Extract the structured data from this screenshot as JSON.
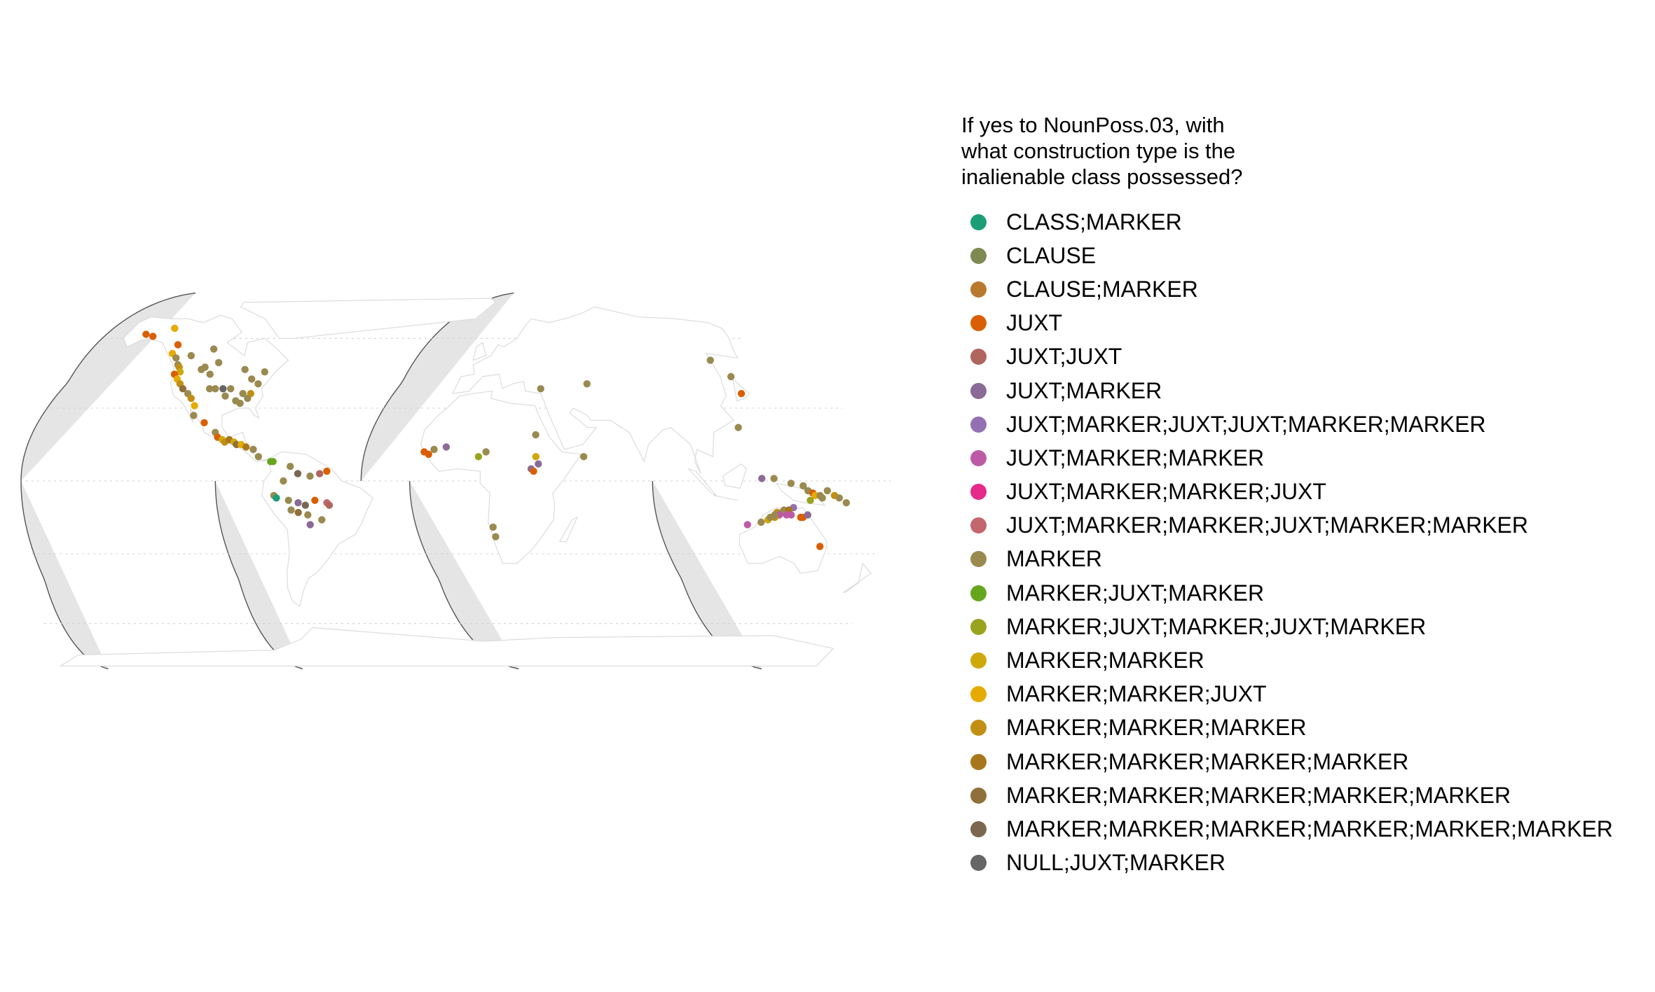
{
  "legend": {
    "title_lines": [
      "If yes to NounPoss.03, with",
      "what construction type is the",
      "inalienable class possessed?"
    ],
    "items": [
      {
        "label": "CLASS;MARKER",
        "color": "#1b9e77"
      },
      {
        "label": "CLAUSE",
        "color": "#7d8a52"
      },
      {
        "label": "CLAUSE;MARKER",
        "color": "#b8792c"
      },
      {
        "label": "JUXT",
        "color": "#d95f02"
      },
      {
        "label": "JUXT;JUXT",
        "color": "#b0655e"
      },
      {
        "label": "JUXT;MARKER",
        "color": "#8c6a98"
      },
      {
        "label": "JUXT;MARKER;JUXT;JUXT;MARKER;MARKER",
        "color": "#9470b3"
      },
      {
        "label": "JUXT;MARKER;MARKER",
        "color": "#bd5aa6"
      },
      {
        "label": "JUXT;MARKER;MARKER;JUXT",
        "color": "#e7298a"
      },
      {
        "label": "JUXT;MARKER;MARKER;JUXT;MARKER;MARKER",
        "color": "#c4666e"
      },
      {
        "label": "MARKER",
        "color": "#9a8a50"
      },
      {
        "label": "MARKER;JUXT;MARKER",
        "color": "#66a61e"
      },
      {
        "label": "MARKER;JUXT;MARKER;JUXT;MARKER",
        "color": "#99a31e"
      },
      {
        "label": "MARKER;MARKER",
        "color": "#cfa80c"
      },
      {
        "label": "MARKER;MARKER;JUXT",
        "color": "#e6ab02"
      },
      {
        "label": "MARKER;MARKER;MARKER",
        "color": "#c28f14"
      },
      {
        "label": "MARKER;MARKER;MARKER;MARKER",
        "color": "#a8771c"
      },
      {
        "label": "MARKER;MARKER;MARKER;MARKER;MARKER",
        "color": "#90703a"
      },
      {
        "label": "MARKER;MARKER;MARKER;MARKER;MARKER;MARKER",
        "color": "#7b6650"
      },
      {
        "label": "NULL;JUXT;MARKER",
        "color": "#666666"
      }
    ]
  },
  "map": {
    "projection": "interrupted Goode homolosine",
    "land_color": "#ffffff",
    "ocean_color": "#e5e5e5",
    "graticule": "dotted",
    "points": [
      {
        "lon": -151,
        "lat": 62,
        "c": "JUXT"
      },
      {
        "lon": -145,
        "lat": 61,
        "c": "JUXT"
      },
      {
        "lon": -132,
        "lat": 65,
        "c": "MARKER;MARKER;JUXT"
      },
      {
        "lon": -125,
        "lat": 57,
        "c": "JUXT"
      },
      {
        "lon": -127,
        "lat": 53,
        "c": "MARKER;MARKER;JUXT"
      },
      {
        "lon": -124,
        "lat": 51,
        "c": "MARKER"
      },
      {
        "lon": -122,
        "lat": 48,
        "c": "MARKER"
      },
      {
        "lon": -121,
        "lat": 47,
        "c": "MARKER;MARKER;MARKER"
      },
      {
        "lon": -120,
        "lat": 45,
        "c": "MARKER;MARKER"
      },
      {
        "lon": -123,
        "lat": 44,
        "c": "JUXT"
      },
      {
        "lon": -121,
        "lat": 42,
        "c": "MARKER;MARKER;JUXT"
      },
      {
        "lon": -119,
        "lat": 40,
        "c": "MARKER;MARKER;MARKER"
      },
      {
        "lon": -117,
        "lat": 38,
        "c": "MARKER;MARKER;MARKER;MARKER;MARKER"
      },
      {
        "lon": -114,
        "lat": 36,
        "c": "MARKER"
      },
      {
        "lon": -112,
        "lat": 34,
        "c": "MARKER;MARKER;MARKER"
      },
      {
        "lon": -110,
        "lat": 31,
        "c": "MARKER;MARKER;JUXT"
      },
      {
        "lon": -115,
        "lat": 52,
        "c": "MARKER"
      },
      {
        "lon": -108,
        "lat": 46,
        "c": "MARKER"
      },
      {
        "lon": -106,
        "lat": 47,
        "c": "MARKER"
      },
      {
        "lon": -103,
        "lat": 44,
        "c": "MARKER"
      },
      {
        "lon": -98,
        "lat": 49,
        "c": "MARKER"
      },
      {
        "lon": -103,
        "lat": 38,
        "c": "MARKER"
      },
      {
        "lon": -100,
        "lat": 38,
        "c": "MARKER"
      },
      {
        "lon": -96,
        "lat": 38,
        "c": "NULL;JUXT;MARKER"
      },
      {
        "lon": -92,
        "lat": 38,
        "c": "MARKER"
      },
      {
        "lon": -95,
        "lat": 35,
        "c": "MARKER"
      },
      {
        "lon": -90,
        "lat": 33,
        "c": "MARKER"
      },
      {
        "lon": -88,
        "lat": 32,
        "c": "MARKER"
      },
      {
        "lon": -86,
        "lat": 36,
        "c": "MARKER"
      },
      {
        "lon": -83,
        "lat": 46,
        "c": "MARKER"
      },
      {
        "lon": -80,
        "lat": 42,
        "c": "MARKER"
      },
      {
        "lon": -77,
        "lat": 40,
        "c": "MARKER"
      },
      {
        "lon": -72,
        "lat": 45,
        "c": "MARKER"
      },
      {
        "lon": -82,
        "lat": 36,
        "c": "MARKER;MARKER;MARKER"
      },
      {
        "lon": -84,
        "lat": 34,
        "c": "MARKER"
      },
      {
        "lon": -101,
        "lat": 55,
        "c": "MARKER"
      },
      {
        "lon": -110,
        "lat": 27,
        "c": "MARKER"
      },
      {
        "lon": -105,
        "lat": 24,
        "c": "JUXT"
      },
      {
        "lon": -100,
        "lat": 20,
        "c": "MARKER"
      },
      {
        "lon": -99,
        "lat": 18,
        "c": "JUXT"
      },
      {
        "lon": -97,
        "lat": 17,
        "c": "MARKER;MARKER"
      },
      {
        "lon": -96,
        "lat": 16,
        "c": "MARKER;MARKER;MARKER"
      },
      {
        "lon": -94,
        "lat": 17,
        "c": "MARKER;MARKER;MARKER;MARKER"
      },
      {
        "lon": -92,
        "lat": 16,
        "c": "MARKER;MARKER"
      },
      {
        "lon": -91,
        "lat": 15,
        "c": "MARKER;MARKER;MARKER;MARKER;MARKER"
      },
      {
        "lon": -89,
        "lat": 15,
        "c": "MARKER;MARKER;JUXT"
      },
      {
        "lon": -87,
        "lat": 14,
        "c": "MARKER;MARKER;MARKER;MARKER"
      },
      {
        "lon": -84,
        "lat": 13,
        "c": "MARKER"
      },
      {
        "lon": -82,
        "lat": 10,
        "c": "MARKER"
      },
      {
        "lon": -77,
        "lat": 8,
        "c": "MARKER;JUXT;MARKER"
      },
      {
        "lon": -76,
        "lat": 8,
        "c": "MARKER;JUXT;MARKER"
      },
      {
        "lon": -69,
        "lat": 6,
        "c": "MARKER"
      },
      {
        "lon": -66,
        "lat": 3,
        "c": "MARKER;MARKER;MARKER;MARKER;MARKER;MARKER"
      },
      {
        "lon": -61,
        "lat": 2,
        "c": "MARKER"
      },
      {
        "lon": -57,
        "lat": 3,
        "c": "JUXT;JUXT"
      },
      {
        "lon": -54,
        "lat": 4,
        "c": "JUXT"
      },
      {
        "lon": -72,
        "lat": 0,
        "c": "MARKER"
      },
      {
        "lon": -76,
        "lat": -6,
        "c": "MARKER"
      },
      {
        "lon": -75,
        "lat": -7,
        "c": "CLASS;MARKER"
      },
      {
        "lon": -70,
        "lat": -8,
        "c": "MARKER"
      },
      {
        "lon": -66,
        "lat": -9,
        "c": "JUXT;MARKER"
      },
      {
        "lon": -63,
        "lat": -10,
        "c": "MARKER;MARKER;MARKER;MARKER;MARKER;MARKER"
      },
      {
        "lon": -59,
        "lat": -8,
        "c": "JUXT"
      },
      {
        "lon": -54,
        "lat": -9,
        "c": "JUXT;MARKER;MARKER;JUXT;MARKER;MARKER"
      },
      {
        "lon": -53,
        "lat": -10,
        "c": "JUXT;JUXT"
      },
      {
        "lon": -69,
        "lat": -12,
        "c": "MARKER"
      },
      {
        "lon": -66,
        "lat": -13,
        "c": "MARKER;MARKER;MARKER;MARKER;MARKER"
      },
      {
        "lon": -62,
        "lat": -14,
        "c": "MARKER"
      },
      {
        "lon": -61,
        "lat": -18,
        "c": "JUXT;MARKER"
      },
      {
        "lon": -56,
        "lat": -16,
        "c": "MARKER"
      },
      {
        "lon": -15,
        "lat": 12,
        "c": "JUXT"
      },
      {
        "lon": -13,
        "lat": 11,
        "c": "JUXT"
      },
      {
        "lon": -11,
        "lat": 13,
        "c": "MARKER"
      },
      {
        "lon": -6,
        "lat": 14,
        "c": "JUXT;MARKER"
      },
      {
        "lon": 8,
        "lat": 10,
        "c": "MARKER;JUXT;MARKER;JUXT;MARKER"
      },
      {
        "lon": 11,
        "lat": 12,
        "c": "MARKER"
      },
      {
        "lon": 32,
        "lat": 19,
        "c": "MARKER"
      },
      {
        "lon": 32,
        "lat": 10,
        "c": "MARKER;MARKER"
      },
      {
        "lon": 30,
        "lat": 5,
        "c": "JUXT;MARKER"
      },
      {
        "lon": 31,
        "lat": 4,
        "c": "JUXT"
      },
      {
        "lon": 33,
        "lat": 7,
        "c": "JUXT;MARKER"
      },
      {
        "lon": 14,
        "lat": -19,
        "c": "MARKER"
      },
      {
        "lon": 15,
        "lat": -23,
        "c": "MARKER"
      },
      {
        "lon": 35,
        "lat": 38,
        "c": "MARKER"
      },
      {
        "lon": 60,
        "lat": 40,
        "c": "MARKER"
      },
      {
        "lon": 52,
        "lat": 10,
        "c": "MARKER"
      },
      {
        "lon": 138,
        "lat": 50,
        "c": "MARKER"
      },
      {
        "lon": 141,
        "lat": 43,
        "c": "MARKER"
      },
      {
        "lon": 137,
        "lat": 36,
        "c": "JUXT"
      },
      {
        "lon": 122,
        "lat": 22,
        "c": "MARKER"
      },
      {
        "lon": 125,
        "lat": 1,
        "c": "JUXT;MARKER"
      },
      {
        "lon": 130,
        "lat": 1,
        "c": "MARKER"
      },
      {
        "lon": 137,
        "lat": -1,
        "c": "MARKER"
      },
      {
        "lon": 142,
        "lat": -2,
        "c": "MARKER"
      },
      {
        "lon": 144,
        "lat": -4,
        "c": "MARKER"
      },
      {
        "lon": 146,
        "lat": -5,
        "c": "JUXT"
      },
      {
        "lon": 147,
        "lat": -6,
        "c": "MARKER;MARKER;JUXT"
      },
      {
        "lon": 149,
        "lat": -6,
        "c": "MARKER"
      },
      {
        "lon": 150,
        "lat": -7,
        "c": "MARKER"
      },
      {
        "lon": 152,
        "lat": -4,
        "c": "MARKER"
      },
      {
        "lon": 155,
        "lat": -6,
        "c": "MARKER;MARKER;MARKER"
      },
      {
        "lon": 157,
        "lat": -7,
        "c": "MARKER"
      },
      {
        "lon": 145,
        "lat": -8,
        "c": "MARKER;JUXT;MARKER;JUXT;MARKER"
      },
      {
        "lon": 160,
        "lat": -9,
        "c": "MARKER"
      },
      {
        "lon": 138,
        "lat": -11,
        "c": "JUXT;MARKER;JUXT;JUXT;MARKER;MARKER"
      },
      {
        "lon": 134,
        "lat": -12,
        "c": "MARKER"
      },
      {
        "lon": 131,
        "lat": -13,
        "c": "MARKER;MARKER;MARKER"
      },
      {
        "lon": 133,
        "lat": -13,
        "c": "MARKER"
      },
      {
        "lon": 132,
        "lat": -14,
        "c": "JUXT;MARKER;MARKER"
      },
      {
        "lon": 130,
        "lat": -15,
        "c": "MARKER;MARKER;MARKER"
      },
      {
        "lon": 130,
        "lat": -14,
        "c": "MARKER"
      },
      {
        "lon": 127,
        "lat": -16,
        "c": "MARKER;MARKER"
      },
      {
        "lon": 128,
        "lat": -15,
        "c": "MARKER"
      },
      {
        "lon": 136,
        "lat": -12,
        "c": "MARKER;MARKER;MARKER;MARKER"
      },
      {
        "lon": 137,
        "lat": -14,
        "c": "JUXT;MARKER;MARKER"
      },
      {
        "lon": 135,
        "lat": -14,
        "c": "JUXT;MARKER;MARKER"
      },
      {
        "lon": 141,
        "lat": -15,
        "c": "JUXT"
      },
      {
        "lon": 142,
        "lat": -15,
        "c": "JUXT"
      },
      {
        "lon": 144,
        "lat": -14,
        "c": "JUXT;MARKER"
      },
      {
        "lon": 124,
        "lat": -17,
        "c": "MARKER"
      },
      {
        "lon": 118,
        "lat": -18,
        "c": "JUXT;MARKER;MARKER"
      },
      {
        "lon": 150,
        "lat": -27,
        "c": "JUXT"
      }
    ]
  }
}
